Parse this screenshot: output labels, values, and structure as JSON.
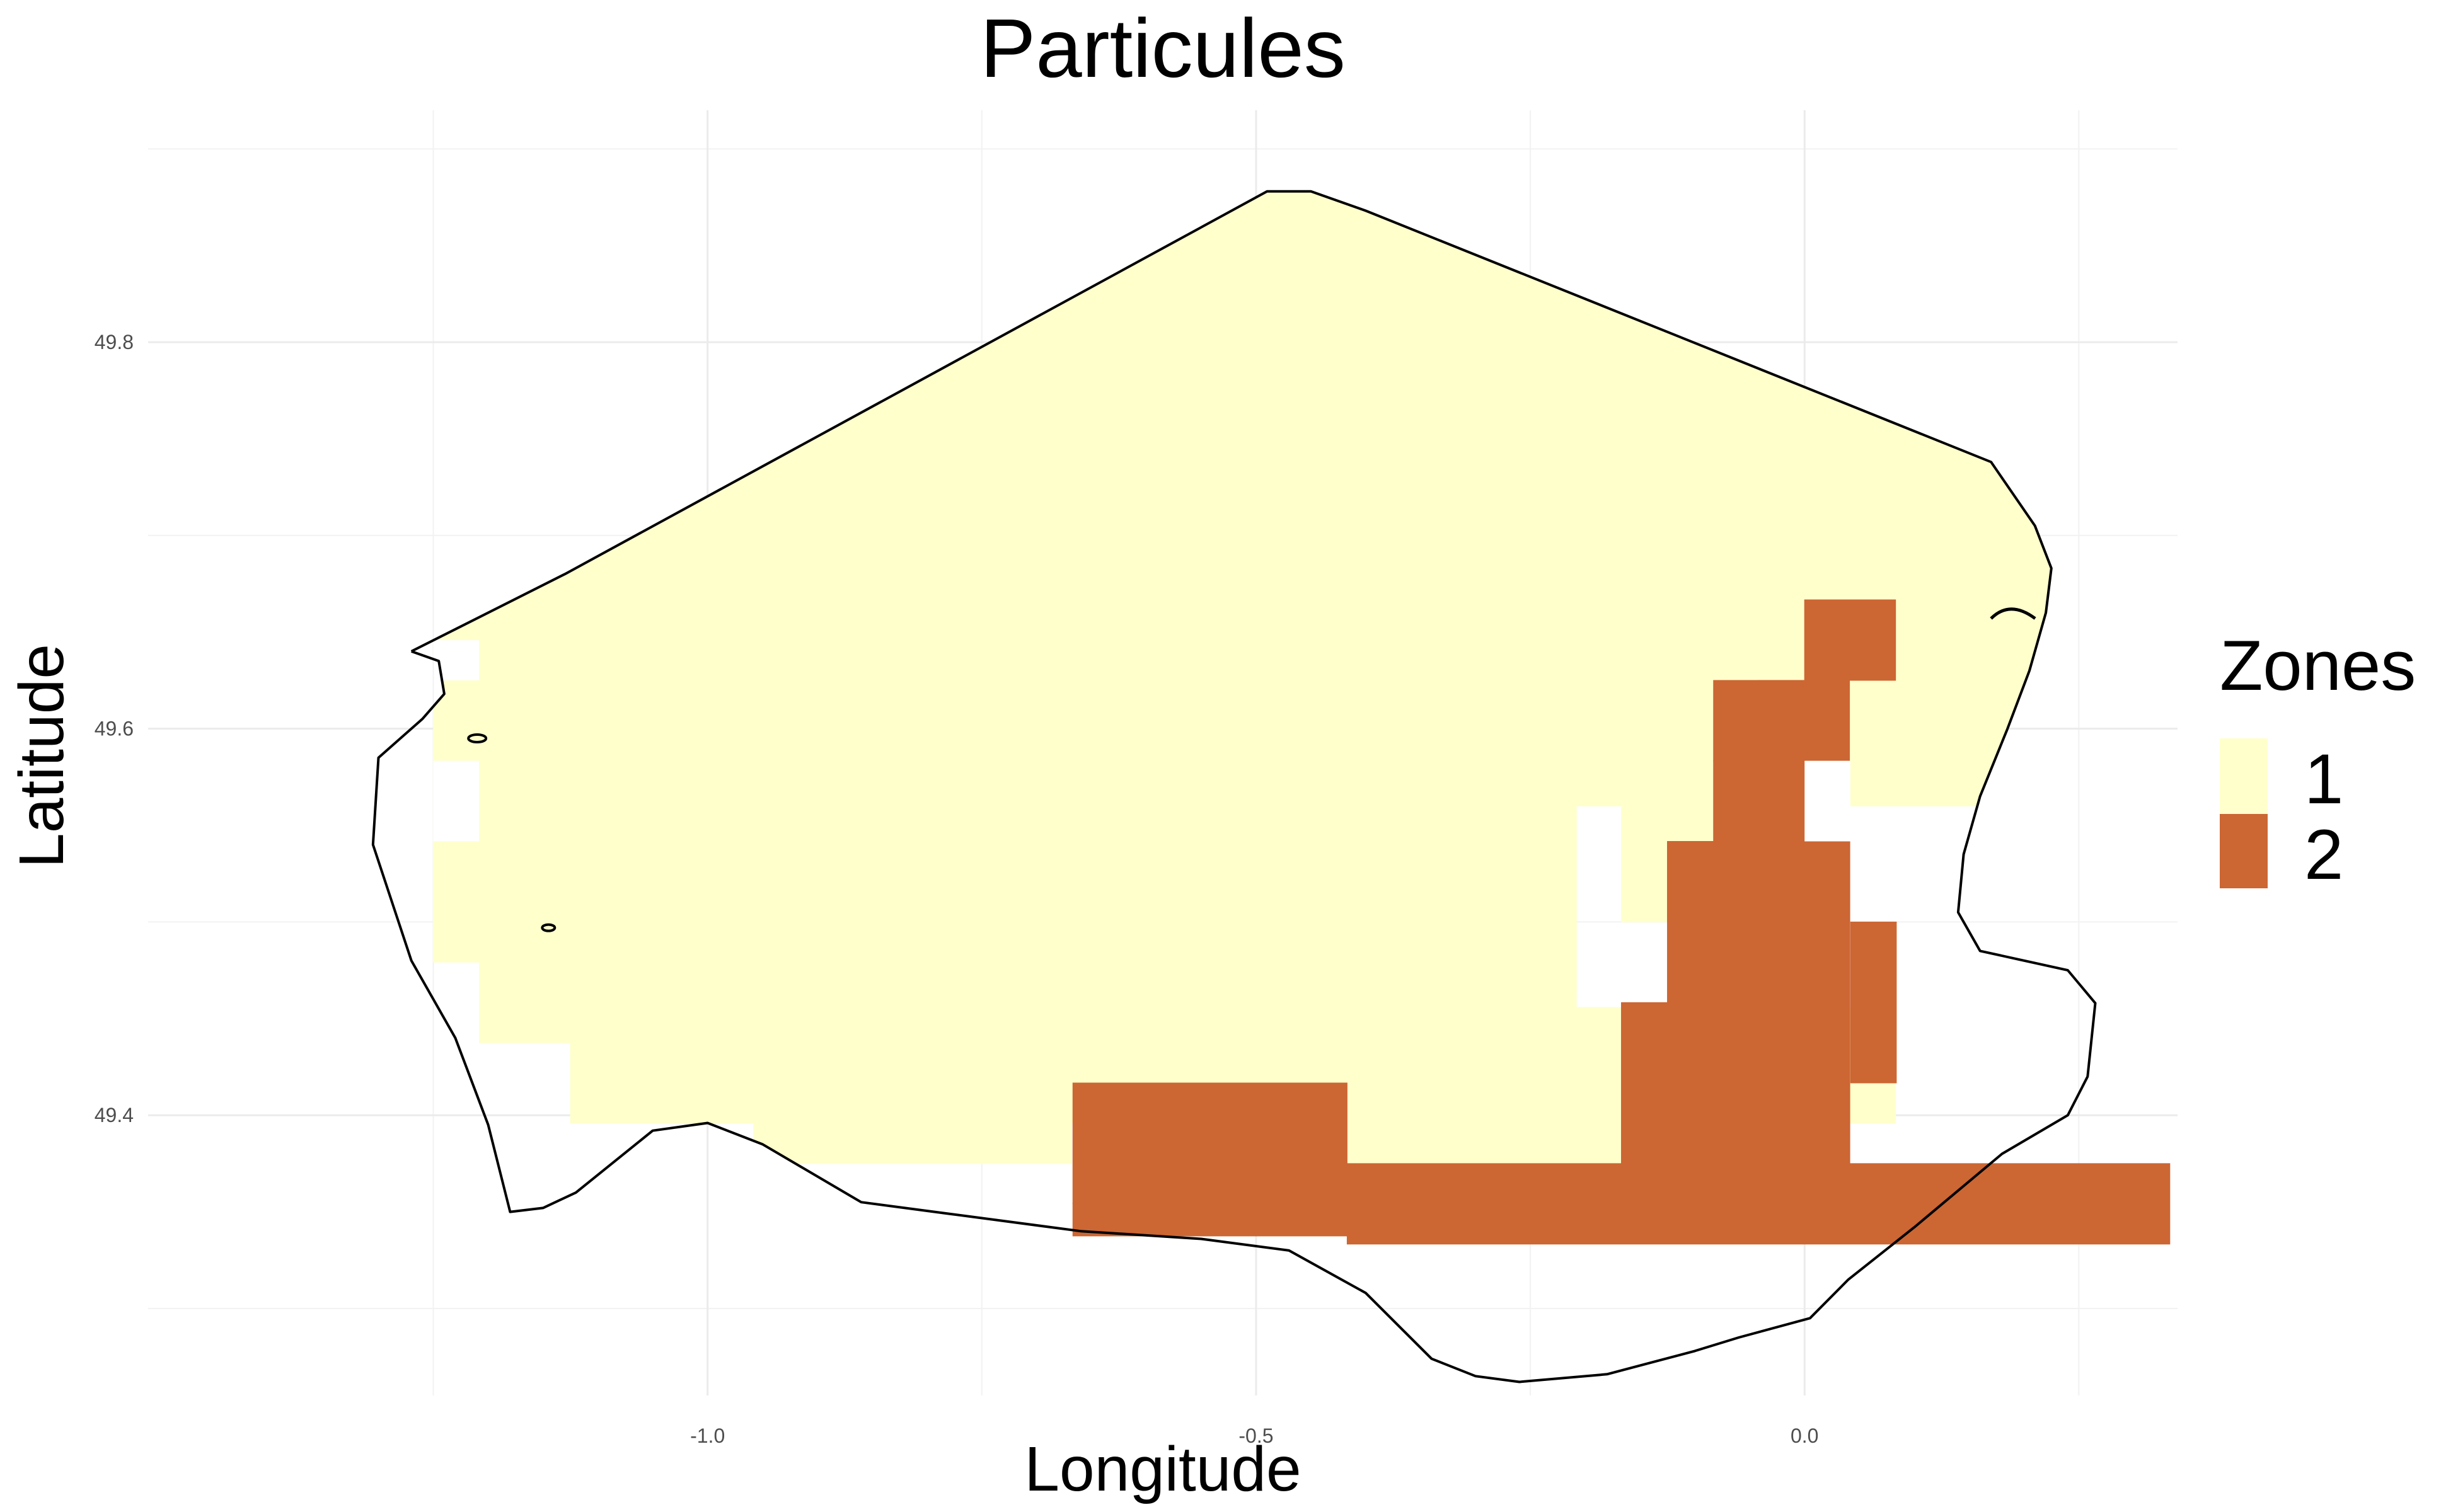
{
  "chart_data": {
    "type": "heatmap",
    "title": "Particules",
    "xlabel": "Longitude",
    "ylabel": "Latitude",
    "xlim": [
      -1.51,
      0.34
    ],
    "ylim": [
      49.255,
      49.92
    ],
    "x_ticks": [
      {
        "value": -1.0,
        "label": "-1.0"
      },
      {
        "value": -0.5,
        "label": "-0.5"
      },
      {
        "value": 0.0,
        "label": "0.0"
      }
    ],
    "y_ticks": [
      {
        "value": 49.4,
        "label": "49.4"
      },
      {
        "value": 49.6,
        "label": "49.6"
      },
      {
        "value": 49.8,
        "label": "49.8"
      }
    ],
    "grid": true,
    "legend": {
      "title": "Zones",
      "position": "right",
      "items": [
        {
          "label": "1",
          "color": "#ffffcc"
        },
        {
          "label": "2",
          "color": "#cc6633"
        }
      ]
    },
    "cell_size": {
      "dlon": 0.04167,
      "dlat": 0.04167
    },
    "zone1_cells": [
      [
        -1.25,
        49.4375,
        0.125,
        0.0833
      ],
      [
        -1.25,
        49.3958,
        0.0417,
        0.0417
      ],
      [
        -1.125,
        49.3958,
        0.1667,
        0.0417
      ],
      [
        -0.958,
        49.3542,
        0.2917,
        0.0833
      ],
      [
        -1.25,
        49.6042,
        0.0417,
        0.0417
      ],
      [
        -1.208,
        49.5,
        0.0417,
        0.125
      ],
      [
        -1.25,
        49.5,
        0.0417,
        0.0417
      ],
      [
        -1.208,
        49.52,
        1.083,
        0.375
      ],
      [
        -0.667,
        49.354,
        0.25,
        0.415
      ],
      [
        -0.417,
        49.354,
        0.25,
        0.415
      ],
      [
        -0.167,
        49.354,
        0.25,
        0.0417
      ],
      [
        -0.25,
        49.521,
        0.333,
        0.354
      ]
    ],
    "zone2_cells": [
      [
        -0.667,
        49.333,
        0.5,
        0.0833
      ],
      [
        -0.417,
        49.292,
        0.75,
        0.0417
      ],
      [
        -0.167,
        49.333,
        0.25,
        0.2083
      ],
      [
        -0.083,
        49.3958,
        0.208,
        0.25
      ],
      [
        0.0,
        49.5,
        0.0417,
        0.2083
      ],
      [
        0.042,
        49.625,
        0.042,
        0.0417
      ],
      [
        -0.042,
        49.5417,
        0.0417,
        0.125
      ],
      [
        -0.042,
        49.6042,
        0.0833,
        0.0417
      ]
    ],
    "coastline": [
      [
        -1.27,
        49.64
      ],
      [
        -1.13,
        49.68
      ],
      [
        -0.49,
        49.878
      ],
      [
        -0.45,
        49.878
      ],
      [
        -0.4,
        49.868
      ],
      [
        0.17,
        49.738
      ],
      [
        0.21,
        49.705
      ],
      [
        0.225,
        49.683
      ],
      [
        0.22,
        49.66
      ],
      [
        0.205,
        49.63
      ],
      [
        0.185,
        49.6
      ],
      [
        0.16,
        49.565
      ],
      [
        0.145,
        49.535
      ],
      [
        0.14,
        49.505
      ],
      [
        0.16,
        49.485
      ],
      [
        0.24,
        49.475
      ],
      [
        0.265,
        49.458
      ],
      [
        0.258,
        49.42
      ],
      [
        0.24,
        49.4
      ],
      [
        0.18,
        49.38
      ],
      [
        0.1,
        49.342
      ],
      [
        0.04,
        49.315
      ],
      [
        0.005,
        49.295
      ],
      [
        -0.06,
        49.285
      ],
      [
        -0.1,
        49.278
      ],
      [
        -0.18,
        49.266
      ],
      [
        -0.26,
        49.262
      ],
      [
        -0.3,
        49.265
      ],
      [
        -0.34,
        49.274
      ],
      [
        -0.4,
        49.308
      ],
      [
        -0.47,
        49.33
      ],
      [
        -0.55,
        49.336
      ],
      [
        -0.66,
        49.34
      ],
      [
        -0.78,
        49.349
      ],
      [
        -0.86,
        49.355
      ],
      [
        -0.95,
        49.385
      ],
      [
        -1.0,
        49.396
      ],
      [
        -1.05,
        49.392
      ],
      [
        -1.12,
        49.36
      ],
      [
        -1.15,
        49.352
      ],
      [
        -1.18,
        49.35
      ],
      [
        -1.2,
        49.395
      ],
      [
        -1.23,
        49.44
      ],
      [
        -1.27,
        49.48
      ],
      [
        -1.305,
        49.54
      ],
      [
        -1.3,
        49.585
      ],
      [
        -1.26,
        49.605
      ],
      [
        -1.24,
        49.618
      ],
      [
        -1.245,
        49.635
      ],
      [
        -1.27,
        49.64
      ]
    ]
  }
}
